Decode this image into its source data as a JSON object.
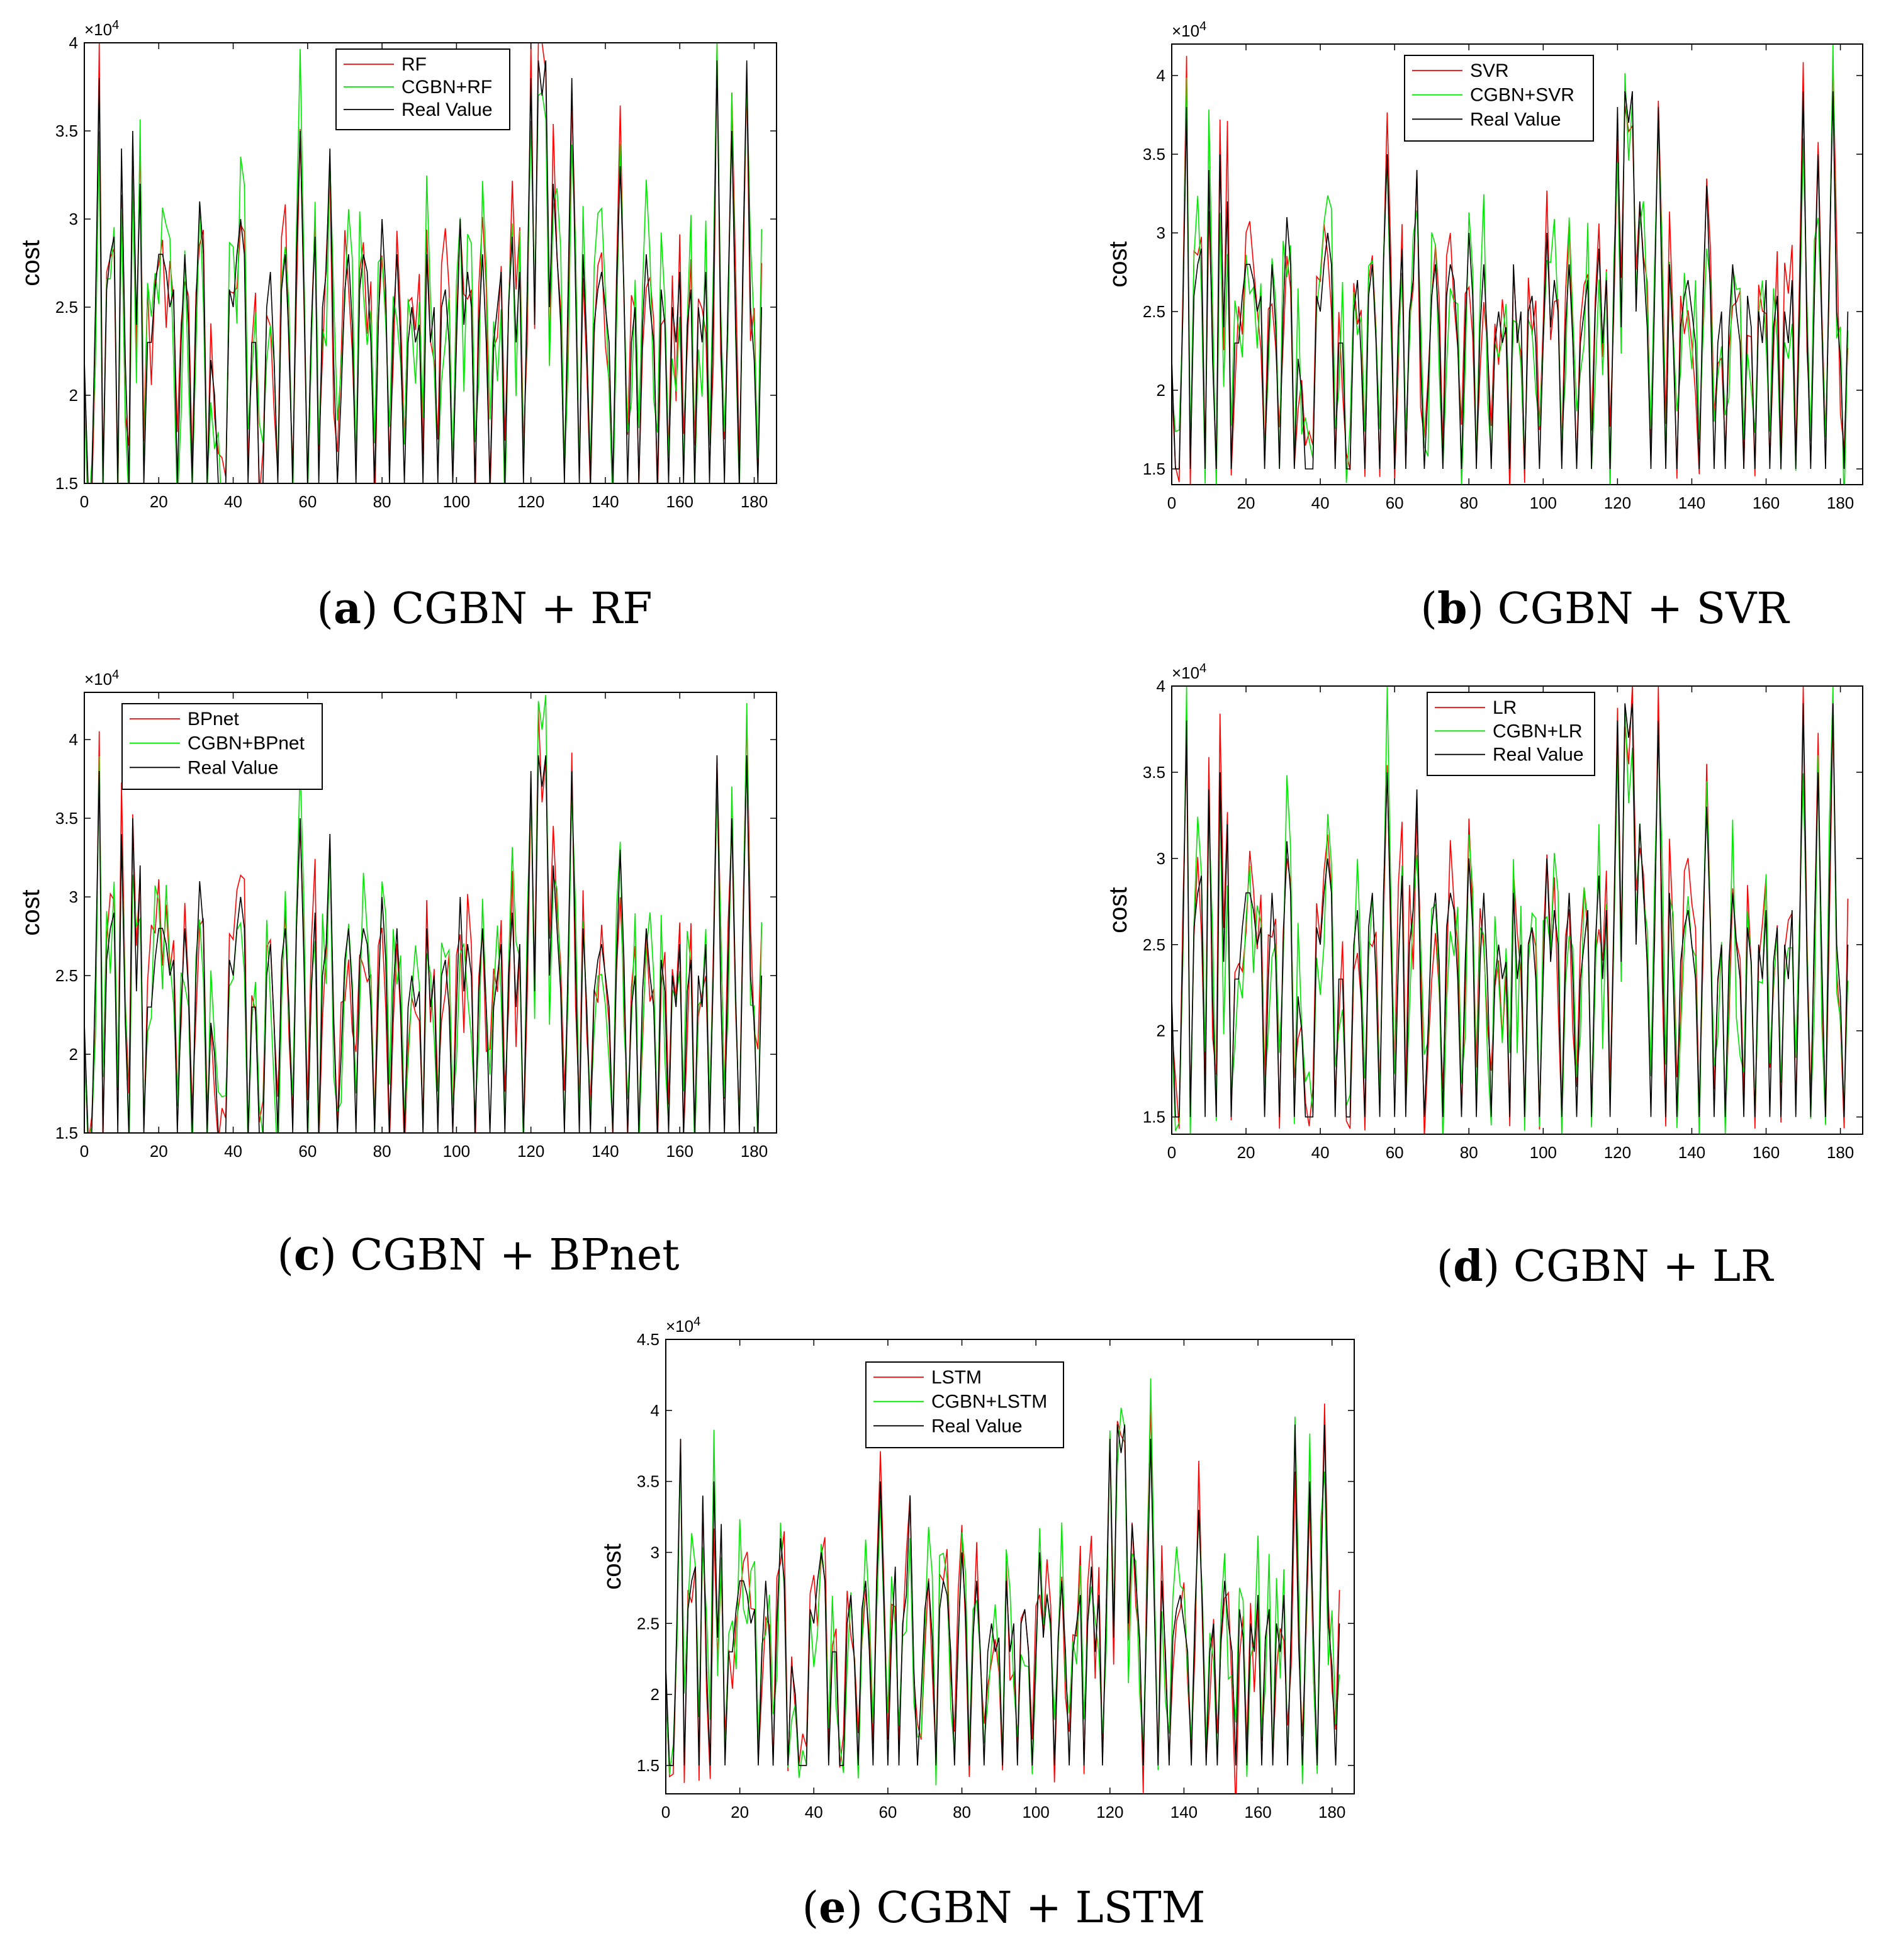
{
  "colors": {
    "model": "#ff0000",
    "cgbn": "#00e600",
    "real": "#000000"
  },
  "chart_data": [
    {
      "id": "a",
      "type": "line",
      "caption_letter": "a",
      "caption_text": " CGBN + RF",
      "xlabel": "",
      "ylabel": "cost",
      "y_multiplier": "×10",
      "y_exponent": "4",
      "xlim": [
        0,
        186
      ],
      "ylim": [
        1.5,
        4
      ],
      "xticks": [
        0,
        20,
        40,
        60,
        80,
        100,
        120,
        140,
        160,
        180
      ],
      "yticks": [
        1.5,
        2,
        2.5,
        3,
        3.5,
        4
      ],
      "ytick_labels": [
        "1.5",
        "2",
        "2.5",
        "3",
        "3.5",
        "4"
      ],
      "legend": [
        "RF",
        "CGBN+RF",
        "Real Value"
      ],
      "series_names": [
        "RF",
        "CGBN+RF",
        "Real Value"
      ]
    },
    {
      "id": "b",
      "type": "line",
      "caption_letter": "b",
      "caption_text": " CGBN + SVR",
      "xlabel": "",
      "ylabel": "cost",
      "y_multiplier": "×10",
      "y_exponent": "4",
      "xlim": [
        0,
        186
      ],
      "ylim": [
        1.4,
        4.2
      ],
      "xticks": [
        0,
        20,
        40,
        60,
        80,
        100,
        120,
        140,
        160,
        180
      ],
      "yticks": [
        1.5,
        2,
        2.5,
        3,
        3.5,
        4
      ],
      "ytick_labels": [
        "1.5",
        "2",
        "2.5",
        "3",
        "3.5",
        "4"
      ],
      "legend": [
        "SVR",
        "CGBN+SVR",
        "Real Value"
      ],
      "series_names": [
        "SVR",
        "CGBN+SVR",
        "Real Value"
      ]
    },
    {
      "id": "c",
      "type": "line",
      "caption_letter": "c",
      "caption_text": " CGBN + BPnet",
      "xlabel": "",
      "ylabel": "cost",
      "y_multiplier": "×10",
      "y_exponent": "4",
      "xlim": [
        0,
        186
      ],
      "ylim": [
        1.5,
        4.3
      ],
      "xticks": [
        0,
        20,
        40,
        60,
        80,
        100,
        120,
        140,
        160,
        180
      ],
      "yticks": [
        1.5,
        2,
        2.5,
        3,
        3.5,
        4
      ],
      "ytick_labels": [
        "1.5",
        "2",
        "2.5",
        "3",
        "3.5",
        "4"
      ],
      "legend": [
        "BPnet",
        "CGBN+BPnet",
        "Real Value"
      ],
      "series_names": [
        "BPnet",
        "CGBN+BPnet",
        "Real Value"
      ]
    },
    {
      "id": "d",
      "type": "line",
      "caption_letter": "d",
      "caption_text": " CGBN + LR",
      "xlabel": "",
      "ylabel": "cost",
      "y_multiplier": "×10",
      "y_exponent": "4",
      "xlim": [
        0,
        186
      ],
      "ylim": [
        1.4,
        4
      ],
      "xticks": [
        0,
        20,
        40,
        60,
        80,
        100,
        120,
        140,
        160,
        180
      ],
      "yticks": [
        1.5,
        2,
        2.5,
        3,
        3.5,
        4
      ],
      "ytick_labels": [
        "1.5",
        "2",
        "2.5",
        "3",
        "3.5",
        "4"
      ],
      "legend": [
        "LR",
        "CGBN+LR",
        "Real Value"
      ],
      "series_names": [
        "LR",
        "CGBN+LR",
        "Real Value"
      ]
    },
    {
      "id": "e",
      "type": "line",
      "caption_letter": "e",
      "caption_text": " CGBN + LSTM",
      "xlabel": "",
      "ylabel": "cost",
      "y_multiplier": "×10",
      "y_exponent": "4",
      "xlim": [
        0,
        186
      ],
      "ylim": [
        1.3,
        4.5
      ],
      "xticks": [
        0,
        20,
        40,
        60,
        80,
        100,
        120,
        140,
        160,
        180
      ],
      "yticks": [
        1.5,
        2,
        2.5,
        3,
        3.5,
        4,
        4.5
      ],
      "ytick_labels": [
        "1.5",
        "2",
        "2.5",
        "3",
        "3.5",
        "4",
        "4.5"
      ],
      "legend": [
        "LSTM",
        "CGBN+LSTM",
        "Real Value"
      ],
      "series_names": [
        "LSTM",
        "CGBN+LSTM",
        "Real Value"
      ]
    }
  ],
  "real_value_series": {
    "x_start": 0,
    "x_step": 1,
    "values": [
      2.2,
      1.5,
      1.5,
      2.5,
      3.8,
      1.5,
      2.6,
      2.8,
      2.9,
      1.5,
      3.4,
      2.2,
      1.5,
      3.5,
      2.4,
      3.2,
      1.5,
      2.3,
      2.3,
      2.6,
      2.8,
      2.8,
      2.7,
      2.5,
      2.6,
      1.5,
      2.3,
      2.8,
      2.4,
      1.5,
      2.5,
      3.1,
      2.8,
      1.5,
      2.2,
      2.0,
      1.5,
      1.5,
      1.5,
      2.6,
      2.5,
      2.8,
      3.0,
      2.8,
      1.5,
      2.3,
      2.3,
      1.5,
      1.5,
      2.5,
      2.7,
      2.2,
      1.5,
      2.6,
      2.8,
      2.3,
      1.5,
      2.8,
      3.5,
      2.6,
      1.5,
      2.4,
      2.9,
      1.5,
      2.5,
      2.7,
      3.4,
      2.2,
      1.5,
      2.0,
      2.6,
      2.8,
      2.4,
      1.5,
      2.6,
      2.8,
      2.7,
      2.3,
      1.5,
      2.4,
      3.0,
      2.6,
      1.5,
      2.4,
      2.8,
      2.3,
      1.5,
      2.3,
      2.5,
      2.3,
      2.4,
      1.5,
      2.8,
      2.3,
      2.5,
      1.5,
      2.5,
      2.6,
      2.3,
      1.5,
      2.3,
      3.0,
      2.4,
      2.7,
      2.5,
      1.5,
      2.4,
      2.8,
      2.3,
      1.5,
      2.3,
      2.5,
      2.7,
      1.5,
      2.5,
      2.9,
      2.3,
      2.7,
      1.5,
      2.6,
      3.8,
      2.4,
      3.9,
      3.7,
      3.9,
      2.5,
      3.2,
      2.8,
      2.4,
      1.5,
      2.6,
      3.8,
      2.6,
      1.5,
      2.8,
      2.3,
      1.5,
      2.4,
      2.6,
      2.7,
      2.5,
      2.3,
      1.5,
      2.6,
      3.3,
      2.6,
      1.5,
      2.3,
      2.5,
      1.5,
      2.4,
      2.8,
      2.5,
      2.3,
      1.5,
      2.6,
      2.4,
      1.5,
      2.5,
      2.3,
      2.7,
      1.5,
      2.4,
      2.6,
      1.5,
      2.5,
      2.3,
      2.7,
      1.5,
      2.5,
      3.9,
      2.4,
      1.5,
      2.6,
      3.5,
      2.4,
      1.5,
      2.8,
      3.9,
      2.5,
      2.2,
      1.5,
      2.5
    ]
  },
  "note": "Each panel plots three series over x = 0..185: model prediction (red), CGBN+model prediction (green) and Real Value (black)."
}
